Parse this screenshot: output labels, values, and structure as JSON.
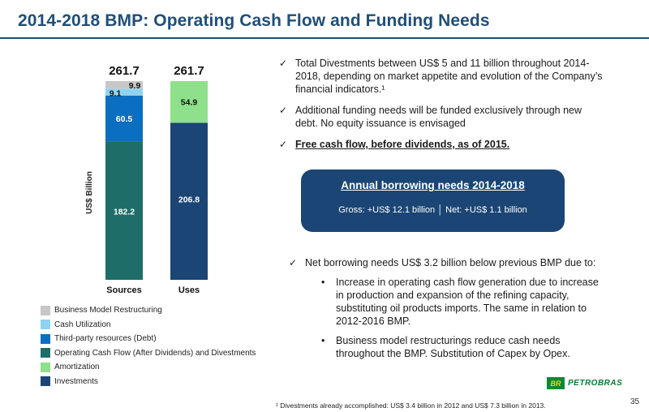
{
  "title": "2014-2018 BMP: Operating Cash Flow and Funding Needs",
  "chart_data": {
    "type": "bar",
    "stacked": true,
    "ylabel": "US$ Billion",
    "categories": [
      "Sources",
      "Uses"
    ],
    "totals": [
      "261.7",
      "261.7"
    ],
    "series": [
      {
        "name": "Operating Cash Flow (After Dividends) and Divestments",
        "color": "#1f6d68",
        "values": [
          182.2,
          0
        ]
      },
      {
        "name": "Third-party resources (Debt)",
        "color": "#0b6fc1",
        "values": [
          60.5,
          0
        ]
      },
      {
        "name": "Cash Utilization",
        "color": "#8fd3f2",
        "values": [
          9.1,
          0
        ]
      },
      {
        "name": "Business Model Restructuring",
        "color": "#c7c7c7",
        "values": [
          9.9,
          0
        ]
      },
      {
        "name": "Investments",
        "color": "#1b4574",
        "values": [
          0,
          206.8
        ]
      },
      {
        "name": "Amortization",
        "color": "#8fe08a",
        "values": [
          0,
          54.9
        ]
      }
    ],
    "ylim": [
      0,
      261.7
    ],
    "grid": false,
    "legend_position": "bottom"
  },
  "legend": [
    {
      "label": "Business Model Restructuring",
      "color": "#c7c7c7"
    },
    {
      "label": "Cash Utilization",
      "color": "#8fd3f2"
    },
    {
      "label": "Third-party resources (Debt)",
      "color": "#0b6fc1"
    },
    {
      "label": "Operating Cash Flow (After Dividends) and Divestments",
      "color": "#1f6d68"
    },
    {
      "label": "Amortization",
      "color": "#8fe08a"
    },
    {
      "label": "Investments",
      "color": "#1b4574"
    }
  ],
  "bullets": [
    "Total Divestments between US$ 5 and 11 billion throughout 2014-2018, depending on market appetite and evolution of the Company’s financial indicators.¹",
    "Additional funding needs will be funded exclusively through new debt. No equity issuance is envisaged",
    "Free cash flow, before dividends, as of 2015."
  ],
  "borrowing": {
    "title": "Annual borrowing needs 2014-2018",
    "line": "Gross: +US$ 12.1 billion │ Net: +US$ 1.1 billion"
  },
  "net_borrowing": {
    "head": "Net borrowing needs US$ 3.2 billion below previous BMP due to:",
    "items": [
      "Increase in operating cash flow generation due to increase in production and expansion of the refining capacity, substituting oil products imports. The same in relation to 2012-2016 BMP.",
      "Business model restructurings reduce cash needs throughout the BMP. Substitution of Capex by Opex."
    ]
  },
  "footnote": "¹ Divestments already accomplished: US$ 3.4 billion in 2012 and US$ 7.3 billion in 2013.",
  "page_number": "35",
  "logo": {
    "mark": "BR",
    "name": "PETROBRAS"
  },
  "icons": {
    "check": "checkmark-icon",
    "bullet": "bullet-dot-icon"
  }
}
